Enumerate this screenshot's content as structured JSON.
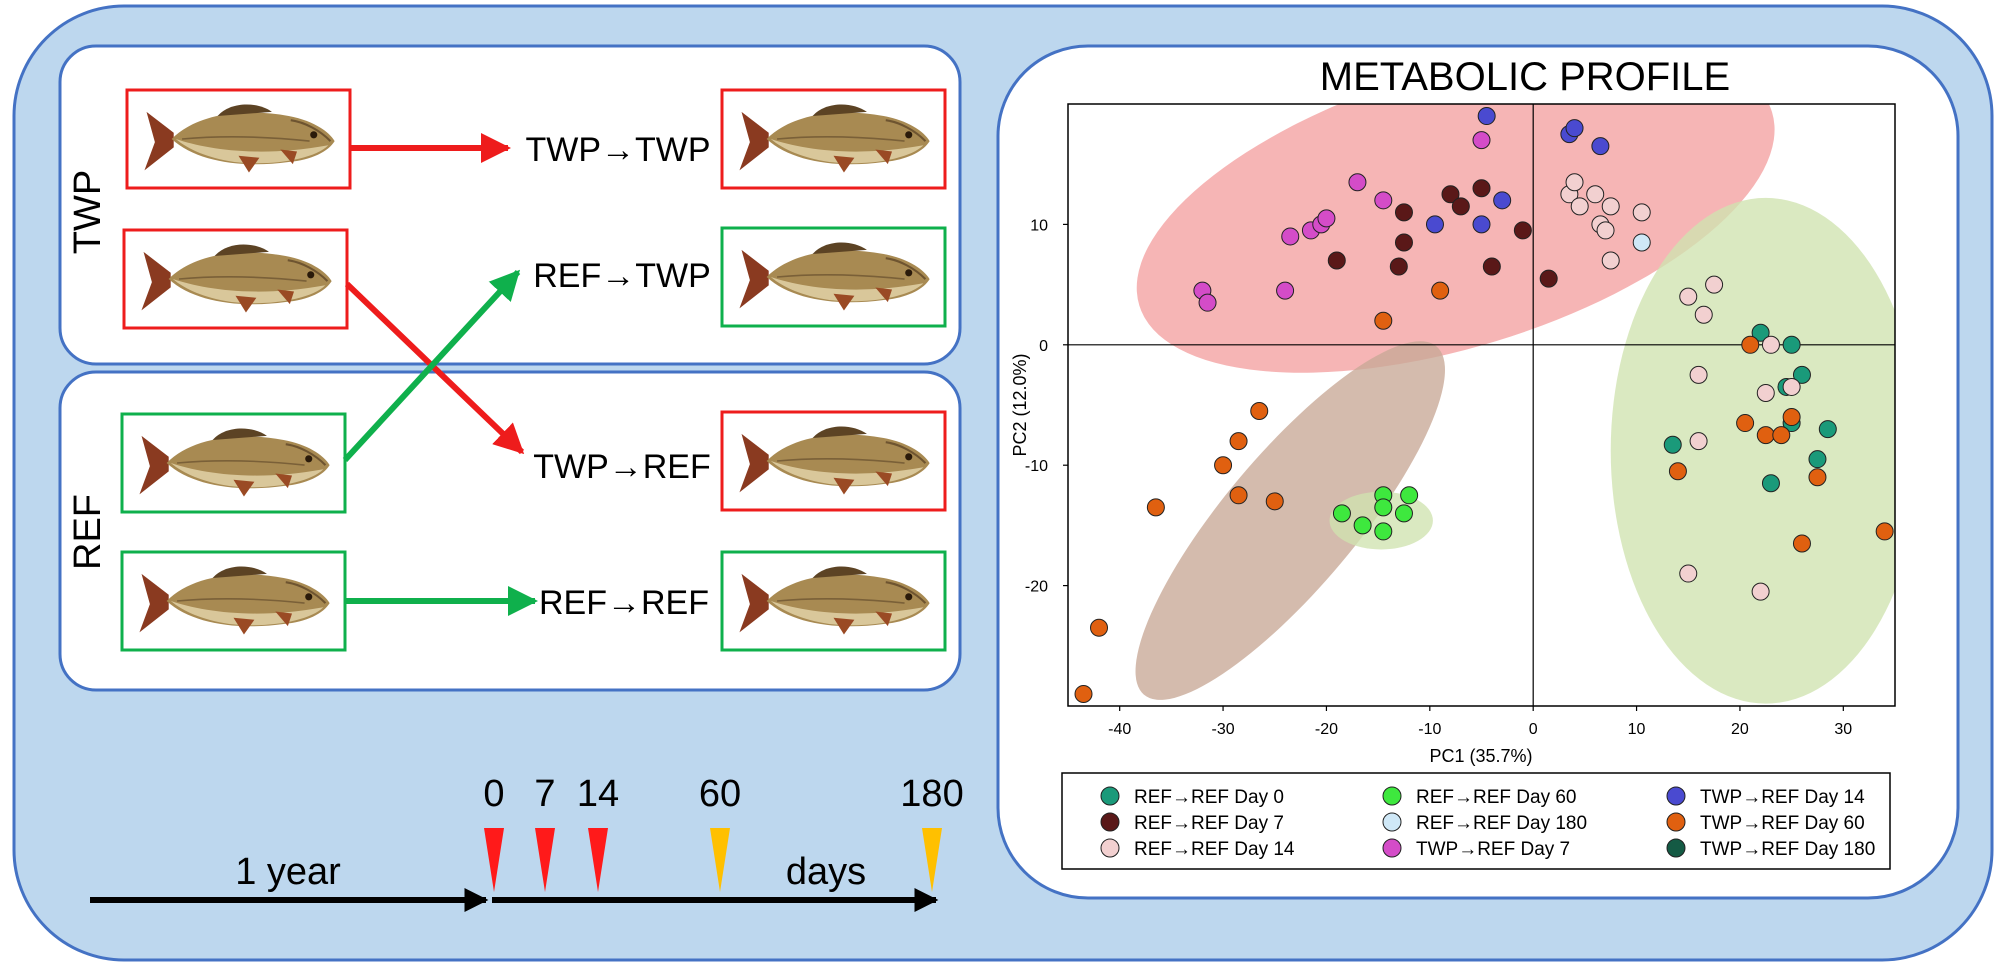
{
  "groups": {
    "twp_label": "TWP",
    "ref_label": "REF"
  },
  "transfers": [
    {
      "label": "TWP→TWP",
      "color": "#ee1c1c"
    },
    {
      "label": "REF→TWP",
      "color": "#0fb04c"
    },
    {
      "label": "TWP→REF",
      "color": "#ee1c1c"
    },
    {
      "label": "REF→REF",
      "color": "#0fb04c"
    }
  ],
  "timeline": {
    "period_label": "1 year",
    "days_label": "days",
    "days": [
      {
        "label": "0",
        "value": 0,
        "color": "#ff1a1a"
      },
      {
        "label": "7",
        "value": 7,
        "color": "#ff1a1a"
      },
      {
        "label": "14",
        "value": 14,
        "color": "#ff1a1a"
      },
      {
        "label": "60",
        "value": 60,
        "color": "#ffc000"
      },
      {
        "label": "180",
        "value": 180,
        "color": "#ffc000"
      }
    ]
  },
  "chart_data": {
    "type": "scatter",
    "title": "METABOLIC PROFILE",
    "xlabel": "PC1 (35.7%)",
    "ylabel": "PC2 (12.0%)",
    "xlim": [
      -45,
      35
    ],
    "ylim": [
      -30,
      20
    ],
    "xticks": [
      -40,
      -30,
      -20,
      -10,
      0,
      10,
      20,
      30
    ],
    "yticks": [
      10,
      0,
      -10,
      -20
    ],
    "xtick_labels": [
      "-40",
      "-30",
      "-20",
      "-10",
      "0",
      "10",
      "20",
      "30"
    ],
    "ytick_labels": [
      "10",
      "0",
      "-10",
      "-20"
    ],
    "ellipses": [
      {
        "cx": -7.5,
        "cy": 11.3,
        "rx": 32,
        "ry": 11.5,
        "angle": 17,
        "color": "#f4a0a0"
      },
      {
        "cx": -23.5,
        "cy": -14.6,
        "rx": 22,
        "ry": 5.5,
        "angle": 50,
        "color": "#c8a896"
      },
      {
        "cx": 22.5,
        "cy": -8.8,
        "rx": 15,
        "ry": 21,
        "angle": 0,
        "color": "#cfe3b0"
      },
      {
        "cx": -14.7,
        "cy": -14.6,
        "rx": 5,
        "ry": 2.4,
        "angle": 0,
        "color": "#cfe3b0"
      }
    ],
    "series": [
      {
        "name": "REF→REF Day 0",
        "color": "#1a9a7a",
        "points": [
          [
            22,
            1
          ],
          [
            25,
            0
          ],
          [
            26,
            -2.5
          ],
          [
            24.5,
            -3.5
          ],
          [
            25,
            -6.5
          ],
          [
            28.5,
            -7
          ],
          [
            27.5,
            -9.5
          ],
          [
            13.5,
            -8.3
          ],
          [
            23,
            -11.5
          ]
        ]
      },
      {
        "name": "REF→REF Day 7",
        "color": "#5a1818",
        "points": [
          [
            -12.5,
            11
          ],
          [
            -8,
            12.5
          ],
          [
            -5,
            13
          ],
          [
            -12.5,
            8.5
          ],
          [
            -19,
            7
          ],
          [
            -13,
            6.5
          ],
          [
            -4,
            6.5
          ],
          [
            1.5,
            5.5
          ],
          [
            -1,
            9.5
          ],
          [
            -7,
            11.5
          ]
        ]
      },
      {
        "name": "REF→REF Day 14",
        "color": "#f2d0d0",
        "points": [
          [
            3.5,
            12.5
          ],
          [
            4,
            13.5
          ],
          [
            6,
            12.5
          ],
          [
            4.5,
            11.5
          ],
          [
            7.5,
            11.5
          ],
          [
            6.5,
            10
          ],
          [
            7,
            9.5
          ],
          [
            10.5,
            11
          ],
          [
            7.5,
            7
          ],
          [
            17.5,
            5
          ],
          [
            15,
            4
          ],
          [
            16.5,
            2.5
          ],
          [
            23,
            0
          ],
          [
            16,
            -2.5
          ],
          [
            25,
            -3.5
          ],
          [
            22.5,
            -4
          ],
          [
            16,
            -8
          ],
          [
            15,
            -19
          ],
          [
            22,
            -20.5
          ]
        ]
      },
      {
        "name": "REF→REF Day 60",
        "color": "#3ee83e",
        "points": [
          [
            -14.5,
            -12.5
          ],
          [
            -12,
            -12.5
          ],
          [
            -14.5,
            -13.5
          ],
          [
            -18.5,
            -14
          ],
          [
            -16.5,
            -15
          ],
          [
            -12.5,
            -14
          ],
          [
            -14.5,
            -15.5
          ]
        ]
      },
      {
        "name": "REF→REF Day 180",
        "color": "#cfe8f7",
        "points": [
          [
            10.5,
            8.5
          ]
        ]
      },
      {
        "name": "TWP→REF Day 7",
        "color": "#d44cc8",
        "points": [
          [
            -5,
            17
          ],
          [
            -17,
            13.5
          ],
          [
            -14.5,
            12
          ],
          [
            -23.5,
            9
          ],
          [
            -21.5,
            9.5
          ],
          [
            -20.5,
            10
          ],
          [
            -20,
            10.5
          ],
          [
            -24,
            4.5
          ],
          [
            -32,
            4.5
          ],
          [
            -31.5,
            3.5
          ]
        ]
      },
      {
        "name": "TWP→REF Day 14",
        "color": "#4a4ad0",
        "points": [
          [
            -4.5,
            19
          ],
          [
            3.5,
            17.5
          ],
          [
            4,
            18
          ],
          [
            6.5,
            16.5
          ],
          [
            -3,
            12
          ],
          [
            -9.5,
            10
          ],
          [
            -5,
            10
          ]
        ]
      },
      {
        "name": "TWP→REF Day 60",
        "color": "#e06010",
        "points": [
          [
            -9,
            4.5
          ],
          [
            -14.5,
            2
          ],
          [
            -26.5,
            -5.5
          ],
          [
            -28.5,
            -8
          ],
          [
            -30,
            -10
          ],
          [
            -28.5,
            -12.5
          ],
          [
            -25,
            -13
          ],
          [
            -36.5,
            -13.5
          ],
          [
            -42,
            -23.5
          ],
          [
            -43.5,
            -29
          ],
          [
            21,
            0
          ],
          [
            25,
            -6
          ],
          [
            22.5,
            -7.5
          ],
          [
            24,
            -7.5
          ],
          [
            20.5,
            -6.5
          ],
          [
            14,
            -10.5
          ],
          [
            27.5,
            -11
          ],
          [
            34,
            -15.5
          ],
          [
            26,
            -16.5
          ]
        ]
      },
      {
        "name": "TWP→REF Day 180",
        "color": "#145a44",
        "points": []
      }
    ]
  }
}
